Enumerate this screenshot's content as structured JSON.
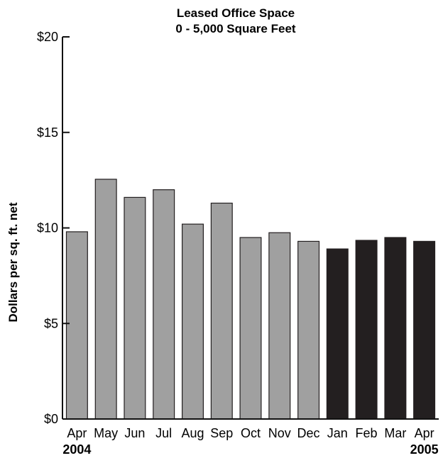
{
  "chart_data": {
    "type": "bar",
    "title": "Leased Office Space",
    "subtitle": "0 - 5,000 Square Feet",
    "xlabel": "",
    "ylabel": "Dollars per sq. ft. net",
    "ylim": [
      0,
      20
    ],
    "yticks": [
      0,
      5,
      10,
      15,
      20
    ],
    "ytick_labels": [
      "$0",
      "$5",
      "$10",
      "$15",
      "$20"
    ],
    "categories": [
      "Apr",
      "May",
      "Jun",
      "Jul",
      "Aug",
      "Sep",
      "Oct",
      "Nov",
      "Dec",
      "Jan",
      "Feb",
      "Mar",
      "Apr"
    ],
    "values": [
      9.8,
      12.55,
      11.6,
      12.0,
      10.2,
      11.3,
      9.5,
      9.75,
      9.3,
      8.9,
      9.35,
      9.5,
      9.3
    ],
    "bar_years": [
      "2004",
      "2004",
      "2004",
      "2004",
      "2004",
      "2004",
      "2004",
      "2004",
      "2004",
      "2005",
      "2005",
      "2005",
      "2005"
    ],
    "year_labels": [
      {
        "text": "2004",
        "under_category_index": 0
      },
      {
        "text": "2005",
        "under_category_index": 12
      }
    ],
    "colors": {
      "2004": "#a0a0a0",
      "2005": "#231f20"
    },
    "grid": false,
    "legend": "none"
  }
}
